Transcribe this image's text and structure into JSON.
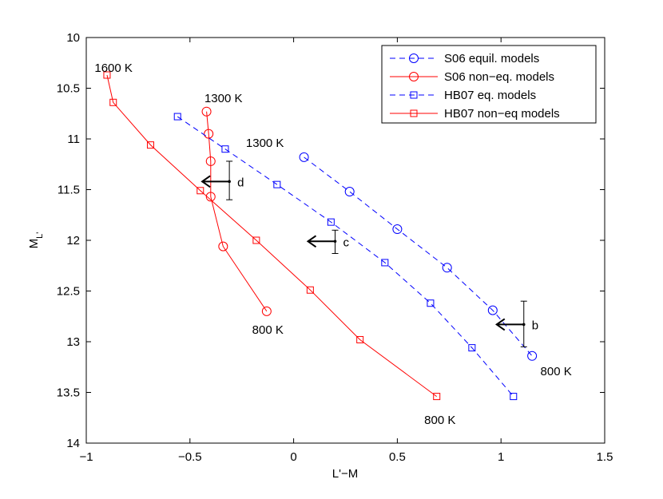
{
  "chart_data": {
    "type": "line",
    "title": "",
    "xlabel": "L'−M",
    "ylabel_main": "M",
    "ylabel_sub": "L'",
    "xlim": [
      -1,
      1.5
    ],
    "ylim": [
      10,
      14
    ],
    "y_inverted": true,
    "grid": false,
    "legend_position": "top-right",
    "xticks": [
      -1,
      -0.5,
      0,
      0.5,
      1,
      1.5
    ],
    "xtick_labels": [
      "−1",
      "−0.5",
      "0",
      "0.5",
      "1",
      "1.5"
    ],
    "yticks": [
      10,
      10.5,
      11,
      11.5,
      12,
      12.5,
      13,
      13.5,
      14
    ],
    "ytick_labels": [
      "10",
      "10.5",
      "11",
      "11.5",
      "12",
      "12.5",
      "13",
      "13.5",
      "14"
    ],
    "series": [
      {
        "name": "S06 equil. models",
        "color": "#0000ff",
        "dashed": true,
        "marker": "circle",
        "x": [
          0.05,
          0.27,
          0.5,
          0.74,
          0.96,
          1.15
        ],
        "y": [
          11.18,
          11.52,
          11.89,
          12.27,
          12.69,
          13.14
        ]
      },
      {
        "name": "S06 non−eq. models",
        "color": "#ff0000",
        "dashed": false,
        "marker": "circle",
        "x": [
          -0.42,
          -0.41,
          -0.4,
          -0.4,
          -0.34,
          -0.13
        ],
        "y": [
          10.73,
          10.95,
          11.22,
          11.57,
          12.06,
          12.7
        ]
      },
      {
        "name": "HB07 eq. models",
        "color": "#0000ff",
        "dashed": true,
        "marker": "square",
        "x": [
          -0.56,
          -0.33,
          -0.08,
          0.18,
          0.44,
          0.66,
          0.86,
          1.06
        ],
        "y": [
          10.78,
          11.1,
          11.45,
          11.82,
          12.22,
          12.62,
          13.06,
          13.54
        ]
      },
      {
        "name": "HB07 non−eq models",
        "color": "#ff0000",
        "dashed": false,
        "marker": "square",
        "x": [
          -0.9,
          -0.87,
          -0.69,
          -0.45,
          -0.18,
          0.08,
          0.32,
          0.69
        ],
        "y": [
          10.37,
          10.64,
          11.06,
          11.51,
          12.0,
          12.49,
          12.98,
          13.54
        ]
      }
    ],
    "data_points": [
      {
        "label": "d",
        "x": -0.31,
        "y": 11.42,
        "err_low": 11.22,
        "err_high": 11.6
      },
      {
        "label": "c",
        "x": 0.2,
        "y": 12.01,
        "err_low": 11.9,
        "err_high": 12.13
      },
      {
        "label": "b",
        "x": 1.11,
        "y": 12.83,
        "err_low": 12.6,
        "err_high": 13.05
      }
    ],
    "annotations": [
      {
        "text": "1600 K",
        "x": -0.96,
        "y": 10.3
      },
      {
        "text": "1300 K",
        "x": -0.43,
        "y": 10.6
      },
      {
        "text": "1300 K",
        "x": -0.23,
        "y": 11.04
      },
      {
        "text": "800 K",
        "x": -0.2,
        "y": 12.88
      },
      {
        "text": "800 K",
        "x": 1.19,
        "y": 13.29
      },
      {
        "text": "800 K",
        "x": 0.63,
        "y": 13.77
      }
    ]
  }
}
